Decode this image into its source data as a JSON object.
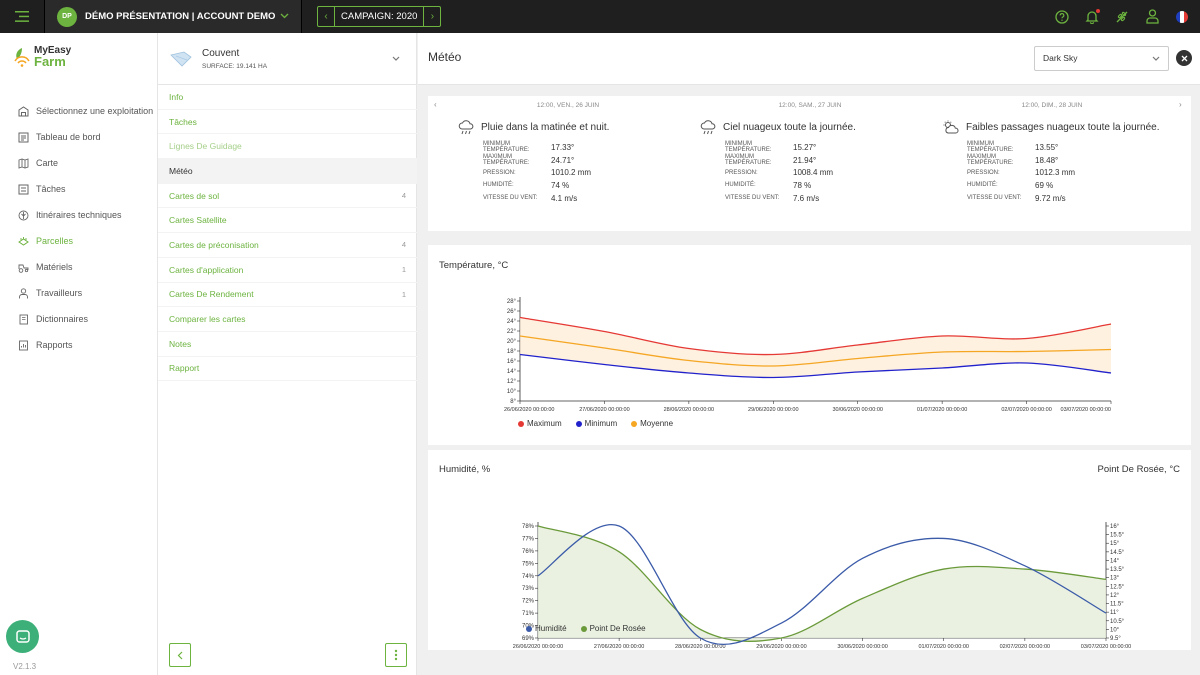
{
  "topbar": {
    "account_initials": "DP",
    "account_label": "DÉMO PRÉSENTATION | ACCOUNT DEMO",
    "campaign_label": "CAMPAIGN: 2020"
  },
  "logo": {
    "line1": "MyEasy",
    "line2": "Farm"
  },
  "nav": {
    "items": [
      {
        "label": "Sélectionnez une exploitation",
        "icon": "farm-icon"
      },
      {
        "label": "Tableau de bord",
        "icon": "dashboard-icon"
      },
      {
        "label": "Carte",
        "icon": "map-icon"
      },
      {
        "label": "Tâches",
        "icon": "tasks-icon"
      },
      {
        "label": "Itinéraires techniques",
        "icon": "itinerary-icon"
      },
      {
        "label": "Parcelles",
        "icon": "parcels-icon",
        "active": true
      },
      {
        "label": "Matériels",
        "icon": "equipment-icon"
      },
      {
        "label": "Travailleurs",
        "icon": "workers-icon"
      },
      {
        "label": "Dictionnaires",
        "icon": "dictionary-icon"
      },
      {
        "label": "Rapports",
        "icon": "reports-icon"
      }
    ],
    "version": "V2.1.3"
  },
  "field": {
    "name": "Couvent",
    "area": "SURFACE: 19.141 HA"
  },
  "field_menu": [
    {
      "label": "Info",
      "count": ""
    },
    {
      "label": "Tâches",
      "count": ""
    },
    {
      "label": "Lignes De Guidage",
      "count": "",
      "disabled": true
    },
    {
      "label": "Météo",
      "count": "",
      "selected": true
    },
    {
      "label": "Cartes de sol",
      "count": "4"
    },
    {
      "label": "Cartes Satellite",
      "count": ""
    },
    {
      "label": "Cartes de préconisation",
      "count": "4"
    },
    {
      "label": "Cartes d'application",
      "count": "1"
    },
    {
      "label": "Cartes De Rendement",
      "count": "1"
    },
    {
      "label": "Comparer les cartes",
      "count": ""
    },
    {
      "label": "Notes",
      "count": ""
    },
    {
      "label": "Rapport",
      "count": ""
    }
  ],
  "content": {
    "title": "Météo",
    "source": "Dark Sky"
  },
  "forecast": {
    "labels": {
      "min": "MINIMUM TEMPÉRATURE:",
      "max": "MAXIMUM TEMPÉRATURE:",
      "pressure": "PRESSION:",
      "humidity": "HUMIDITÉ:",
      "wind": "VITESSE DU VENT:"
    },
    "days": [
      {
        "date": "12:00, VEN., 26 JUIN",
        "summary": "Pluie dans la matinée et nuit.",
        "icon": "rain-cloud-icon",
        "min": "17.33°",
        "max": "24.71°",
        "pressure": "1010.2 mm",
        "humidity": "74 %",
        "wind": "4.1 m/s"
      },
      {
        "date": "12:00, SAM., 27 JUIN",
        "summary": "Ciel nuageux toute la journée.",
        "icon": "rain-cloud-icon",
        "min": "15.27°",
        "max": "21.94°",
        "pressure": "1008.4 mm",
        "humidity": "78 %",
        "wind": "7.6 m/s"
      },
      {
        "date": "12:00, DIM., 28 JUIN",
        "summary": "Faibles passages nuageux toute la journée.",
        "icon": "partly-cloudy-icon",
        "min": "13.55°",
        "max": "18.48°",
        "pressure": "1012.3 mm",
        "humidity": "69 %",
        "wind": "9.72 m/s"
      }
    ]
  },
  "chart_data": [
    {
      "type": "line",
      "title": "Température, °C",
      "x": [
        "26/06/2020 00:00:00",
        "27/06/2020 00:00:00",
        "28/06/2020 00:00:00",
        "29/06/2020 00:00:00",
        "30/06/2020 00:00:00",
        "01/07/2020 00:00:00",
        "02/07/2020 00:00:00",
        "03/07/2020 00:00:00"
      ],
      "ylim": [
        8,
        28
      ],
      "yticks": [
        "8°",
        "10°",
        "12°",
        "14°",
        "16°",
        "18°",
        "20°",
        "22°",
        "24°",
        "26°",
        "28°"
      ],
      "series": [
        {
          "name": "Maximum",
          "color": "#e53935",
          "values": [
            24.7,
            21.9,
            18.5,
            17.3,
            19.2,
            21.0,
            20.5,
            23.4
          ]
        },
        {
          "name": "Minimum",
          "color": "#2222cc",
          "values": [
            17.3,
            15.3,
            13.6,
            12.7,
            13.8,
            14.6,
            15.6,
            13.6
          ]
        },
        {
          "name": "Moyenne",
          "color": "#f5a623",
          "values": [
            21.0,
            18.6,
            16.1,
            15.0,
            16.5,
            17.8,
            17.9,
            18.3
          ]
        }
      ],
      "legend": "bottom-left"
    },
    {
      "type": "line",
      "title": "Humidité, %",
      "right_title": "Point De Rosée, °C",
      "x": [
        "26/06/2020 00:00:00",
        "27/06/2020 00:00:00",
        "28/06/2020 00:00:00",
        "29/06/2020 00:00:00",
        "30/06/2020 00:00:00",
        "01/07/2020 00:00:00",
        "02/07/2020 00:00:00",
        "03/07/2020 00:00:00"
      ],
      "ylim_left": [
        69,
        78
      ],
      "yticks_left": [
        "69%",
        "70%",
        "71%",
        "72%",
        "73%",
        "74%",
        "75%",
        "76%",
        "77%",
        "78%"
      ],
      "ylim_right": [
        9.5,
        16
      ],
      "yticks_right": [
        "9.5°",
        "10°",
        "10.5°",
        "11°",
        "11.5°",
        "12°",
        "12.5°",
        "13°",
        "13.5°",
        "14°",
        "14.5°",
        "15°",
        "15.5°",
        "16°"
      ],
      "series": [
        {
          "name": "Humidité",
          "color": "#3b5ba9",
          "axis": "left",
          "values": [
            74,
            78,
            69,
            70.2,
            75.4,
            77,
            74.8,
            71
          ]
        },
        {
          "name": "Point De Rosée",
          "color": "#6a9a3a",
          "axis": "right",
          "values": [
            16,
            14.5,
            10,
            9.5,
            11.8,
            13.5,
            13.5,
            12.9
          ]
        }
      ],
      "legend": "bottom-left"
    }
  ]
}
